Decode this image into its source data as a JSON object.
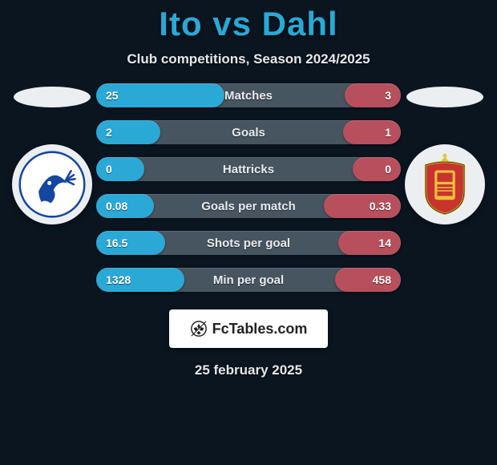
{
  "title": "Ito vs Dahl",
  "title_color": "#2aa8d6",
  "subtitle": "Club competitions, Season 2024/2025",
  "date": "25 february 2025",
  "background_color": "#0a1520",
  "row_bg": "#465560",
  "left_color": "#2aa8d6",
  "right_color": "#b84f5c",
  "crest_bg": "#eceff2",
  "fctables_label": "FcTables.com",
  "rows": [
    {
      "label": "Matches",
      "left": "25",
      "right": "3",
      "left_w": 160,
      "right_w": 70
    },
    {
      "label": "Goals",
      "left": "2",
      "right": "1",
      "left_w": 80,
      "right_w": 72
    },
    {
      "label": "Hattricks",
      "left": "0",
      "right": "0",
      "left_w": 60,
      "right_w": 60
    },
    {
      "label": "Goals per match",
      "left": "0.08",
      "right": "0.33",
      "left_w": 72,
      "right_w": 96
    },
    {
      "label": "Shots per goal",
      "left": "16.5",
      "right": "14",
      "left_w": 86,
      "right_w": 78
    },
    {
      "label": "Min per goal",
      "left": "1328",
      "right": "458",
      "left_w": 110,
      "right_w": 82
    }
  ]
}
